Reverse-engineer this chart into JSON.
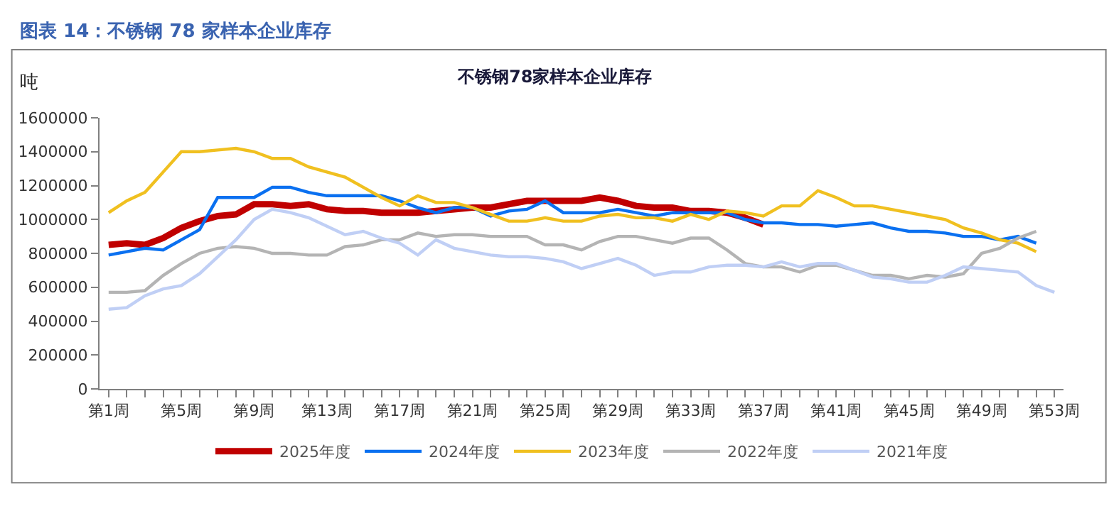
{
  "chart_data": {
    "type": "line",
    "title": "图表 14：不锈钢 78 家样本企业库存",
    "subtitle": "不锈钢78家样本企业库存",
    "ylabel": "吨",
    "categories": [
      "第1周",
      null,
      null,
      null,
      "第5周",
      null,
      null,
      null,
      "第9周",
      null,
      null,
      null,
      "第13周",
      null,
      null,
      null,
      "第17周",
      null,
      null,
      null,
      "第21周",
      null,
      null,
      null,
      "第25周",
      null,
      null,
      null,
      "第29周",
      null,
      null,
      null,
      "第33周",
      null,
      null,
      null,
      "第37周",
      null,
      null,
      null,
      "第41周",
      null,
      null,
      null,
      "第45周",
      null,
      null,
      null,
      "第49周",
      null,
      null,
      null,
      "第53周"
    ],
    "ylim": [
      0,
      1600000
    ],
    "yticks": [
      0,
      200000,
      400000,
      600000,
      800000,
      1000000,
      1200000,
      1400000,
      1600000
    ],
    "legend": "bottom",
    "marker": "none",
    "line_style": "solid",
    "series": [
      {
        "name": "2025年度",
        "color": "#c00000",
        "values": [
          850000,
          860000,
          850000,
          890000,
          950000,
          990000,
          1020000,
          1030000,
          1090000,
          1090000,
          1080000,
          1090000,
          1060000,
          1050000,
          1050000,
          1040000,
          1040000,
          1040000,
          1050000,
          1060000,
          1070000,
          1070000,
          1090000,
          1110000,
          1110000,
          1110000,
          1110000,
          1130000,
          1110000,
          1080000,
          1070000,
          1070000,
          1050000,
          1050000,
          1040000,
          1010000,
          970000,
          null,
          null,
          null,
          null,
          null,
          null,
          null,
          null,
          null,
          null,
          null,
          null,
          null,
          null,
          null,
          null
        ]
      },
      {
        "name": "2024年度",
        "color": "#0a70f0",
        "values": [
          790000,
          810000,
          830000,
          820000,
          880000,
          940000,
          1130000,
          1130000,
          1130000,
          1190000,
          1190000,
          1160000,
          1140000,
          1140000,
          1140000,
          1140000,
          1110000,
          1070000,
          1040000,
          1070000,
          1070000,
          1020000,
          1050000,
          1060000,
          1110000,
          1040000,
          1040000,
          1040000,
          1060000,
          1040000,
          1020000,
          1040000,
          1040000,
          1040000,
          1040000,
          1000000,
          980000,
          980000,
          970000,
          970000,
          960000,
          970000,
          980000,
          950000,
          930000,
          930000,
          920000,
          900000,
          900000,
          880000,
          900000,
          860000,
          null
        ]
      },
      {
        "name": "2023年度",
        "color": "#f0c020",
        "values": [
          1040000,
          1110000,
          1160000,
          1280000,
          1400000,
          1400000,
          1410000,
          1420000,
          1400000,
          1360000,
          1360000,
          1310000,
          1280000,
          1250000,
          1190000,
          1130000,
          1080000,
          1140000,
          1100000,
          1100000,
          1070000,
          1030000,
          990000,
          990000,
          1010000,
          990000,
          990000,
          1020000,
          1030000,
          1010000,
          1010000,
          990000,
          1030000,
          1000000,
          1050000,
          1040000,
          1020000,
          1080000,
          1080000,
          1170000,
          1130000,
          1080000,
          1080000,
          1060000,
          1040000,
          1020000,
          1000000,
          950000,
          920000,
          880000,
          860000,
          810000,
          null
        ]
      },
      {
        "name": "2022年度",
        "color": "#b4b4b4",
        "values": [
          570000,
          570000,
          580000,
          670000,
          740000,
          800000,
          830000,
          840000,
          830000,
          800000,
          800000,
          790000,
          790000,
          840000,
          850000,
          880000,
          880000,
          920000,
          900000,
          910000,
          910000,
          900000,
          900000,
          900000,
          850000,
          850000,
          820000,
          870000,
          900000,
          900000,
          880000,
          860000,
          890000,
          890000,
          820000,
          740000,
          720000,
          720000,
          690000,
          730000,
          730000,
          700000,
          670000,
          670000,
          650000,
          670000,
          660000,
          680000,
          800000,
          830000,
          890000,
          930000,
          null
        ]
      },
      {
        "name": "2021年度",
        "color": "#c0cff5",
        "values": [
          470000,
          480000,
          550000,
          590000,
          610000,
          680000,
          780000,
          880000,
          1000000,
          1060000,
          1040000,
          1010000,
          960000,
          910000,
          930000,
          890000,
          860000,
          790000,
          880000,
          830000,
          810000,
          790000,
          780000,
          780000,
          770000,
          750000,
          710000,
          740000,
          770000,
          730000,
          670000,
          690000,
          690000,
          720000,
          730000,
          730000,
          720000,
          750000,
          720000,
          740000,
          740000,
          700000,
          660000,
          650000,
          630000,
          630000,
          670000,
          720000,
          710000,
          700000,
          690000,
          610000,
          570000
        ]
      }
    ]
  }
}
